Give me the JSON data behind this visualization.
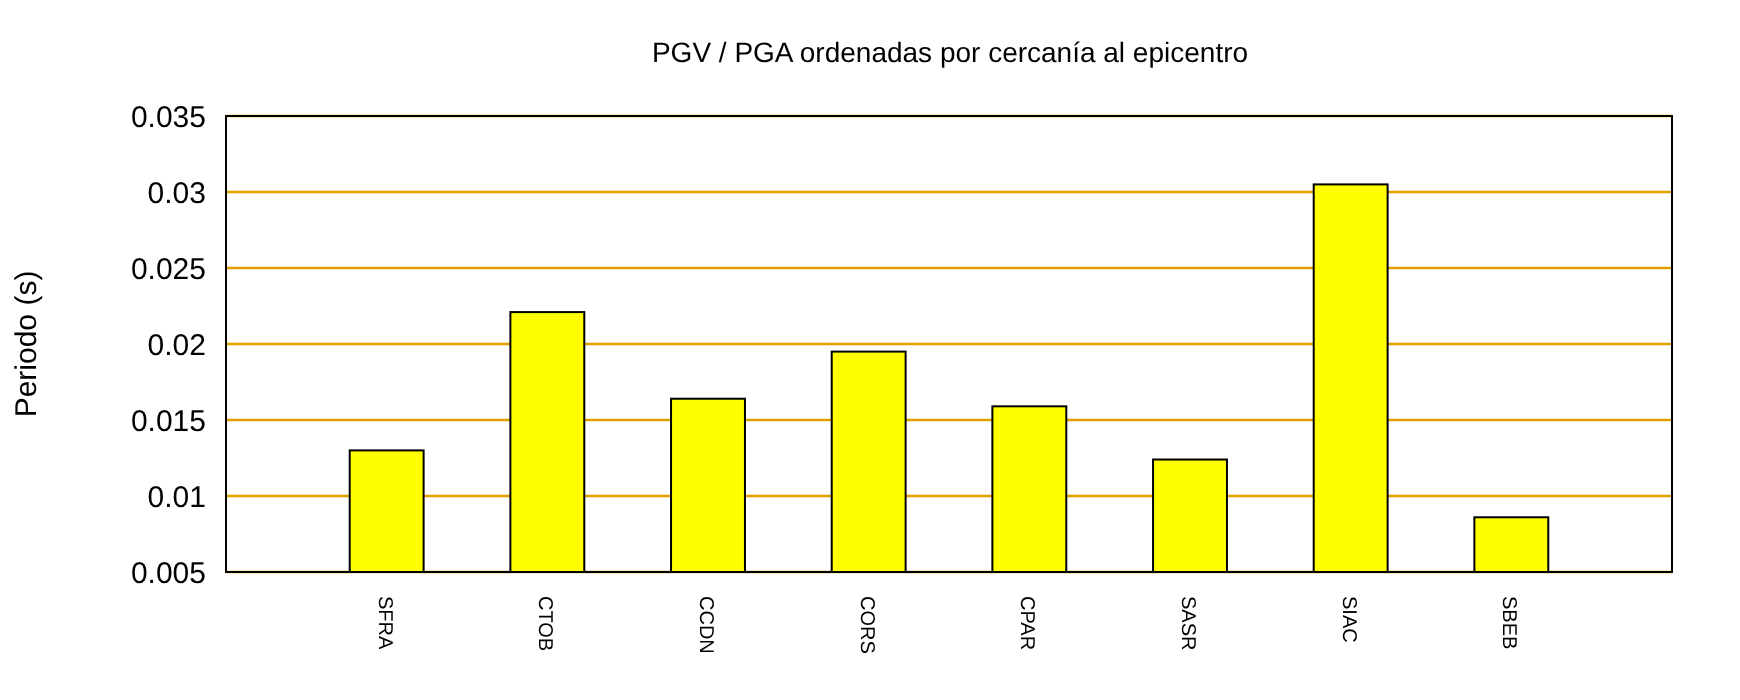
{
  "chart_data": {
    "type": "bar",
    "title": "PGV / PGA ordenadas por cercanía al epicentro",
    "ylabel": "Periodo (s)",
    "categories": [
      "SFRA",
      "CTOB",
      "CCDN",
      "CORS",
      "CPAR",
      "SASR",
      "SIAC",
      "SBEB"
    ],
    "values": [
      0.013,
      0.0221,
      0.0164,
      0.0195,
      0.0159,
      0.0124,
      0.0305,
      0.0086
    ],
    "color": "#ffff00",
    "ylim": [
      0.005,
      0.035
    ],
    "yticks": [
      0.005,
      0.01,
      0.015,
      0.02,
      0.025,
      0.03,
      0.035
    ],
    "grid": "y"
  }
}
